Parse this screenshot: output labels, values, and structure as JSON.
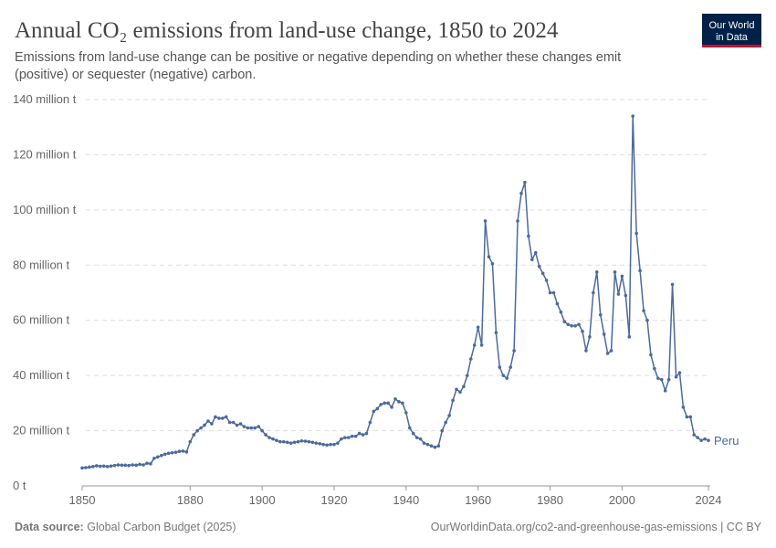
{
  "chart_data": {
    "type": "line",
    "title": "Annual CO₂ emissions from land-use change, 1850 to 2024",
    "subtitle": [
      "Emissions from land-use change can be positive or negative depending on whether these changes emit",
      "(positive) or sequester (negative) carbon."
    ],
    "logo": [
      "Our World",
      "in Data"
    ],
    "source_label": "Data source:",
    "source": "Global Carbon Budget (2025)",
    "footer_right": "OurWorldinData.org/co2-and-greenhouse-gas-emissions | CC BY",
    "x": [
      1850,
      1851,
      1852,
      1853,
      1854,
      1855,
      1856,
      1857,
      1858,
      1859,
      1860,
      1861,
      1862,
      1863,
      1864,
      1865,
      1866,
      1867,
      1868,
      1869,
      1870,
      1871,
      1872,
      1873,
      1874,
      1875,
      1876,
      1877,
      1878,
      1879,
      1880,
      1881,
      1882,
      1883,
      1884,
      1885,
      1886,
      1887,
      1888,
      1889,
      1890,
      1891,
      1892,
      1893,
      1894,
      1895,
      1896,
      1897,
      1898,
      1899,
      1900,
      1901,
      1902,
      1903,
      1904,
      1905,
      1906,
      1907,
      1908,
      1909,
      1910,
      1911,
      1912,
      1913,
      1914,
      1915,
      1916,
      1917,
      1918,
      1919,
      1920,
      1921,
      1922,
      1923,
      1924,
      1925,
      1926,
      1927,
      1928,
      1929,
      1930,
      1931,
      1932,
      1933,
      1934,
      1935,
      1936,
      1937,
      1938,
      1939,
      1940,
      1941,
      1942,
      1943,
      1944,
      1945,
      1946,
      1947,
      1948,
      1949,
      1950,
      1951,
      1952,
      1953,
      1954,
      1955,
      1956,
      1957,
      1958,
      1959,
      1960,
      1961,
      1962,
      1963,
      1964,
      1965,
      1966,
      1967,
      1968,
      1969,
      1970,
      1971,
      1972,
      1973,
      1974,
      1975,
      1976,
      1977,
      1978,
      1979,
      1980,
      1981,
      1982,
      1983,
      1984,
      1985,
      1986,
      1987,
      1988,
      1989,
      1990,
      1991,
      1992,
      1993,
      1994,
      1995,
      1996,
      1997,
      1998,
      1999,
      2000,
      2001,
      2002,
      2003,
      2004,
      2005,
      2006,
      2007,
      2008,
      2009,
      2010,
      2011,
      2012,
      2013,
      2014,
      2015,
      2016,
      2017,
      2018,
      2019,
      2020,
      2021,
      2022,
      2023,
      2024
    ],
    "series": [
      {
        "name": "Peru",
        "color": "#4c6a9c",
        "values": [
          6.5,
          6.6,
          6.8,
          7,
          7.3,
          7.1,
          7.2,
          7,
          7.2,
          7.4,
          7.6,
          7.5,
          7.5,
          7.4,
          7.6,
          7.5,
          7.8,
          7.6,
          8.2,
          8,
          10,
          10.5,
          11,
          11.5,
          11.8,
          12,
          12.2,
          12.5,
          12.6,
          12.3,
          16,
          18.5,
          20,
          21,
          22,
          23.5,
          22.5,
          25,
          24.5,
          24.5,
          25,
          23,
          23,
          22,
          22.5,
          21.5,
          21,
          21,
          21,
          21.5,
          20,
          18.5,
          17.5,
          17,
          16.5,
          16,
          16,
          15.8,
          15.5,
          15.8,
          16,
          16.3,
          16.2,
          16,
          15.8,
          15.5,
          15.3,
          15,
          14.8,
          15,
          15,
          15.5,
          17,
          17.5,
          17.5,
          18,
          18,
          19,
          18.5,
          19,
          23,
          27,
          28,
          29.5,
          30,
          30,
          28.5,
          31.5,
          30.5,
          30,
          26.5,
          21,
          19,
          17.5,
          17,
          15.5,
          15,
          14.5,
          14,
          14.5,
          20,
          23,
          25.5,
          31,
          35,
          34,
          36,
          40,
          46,
          51,
          57.5,
          51,
          96,
          83,
          80.5,
          55.5,
          43,
          40,
          39,
          43,
          49,
          96,
          106,
          110,
          90.5,
          82,
          84.5,
          79.5,
          77,
          74.5,
          70,
          70,
          66,
          63,
          59.5,
          58.5,
          58,
          58,
          58.5,
          56,
          49,
          54,
          70,
          77.5,
          62,
          55,
          48,
          49,
          77.5,
          69.5,
          76,
          69,
          54,
          134,
          91.5,
          78,
          63.5,
          60,
          47.5,
          42.5,
          39,
          38.5,
          34.5,
          38.5,
          73,
          39.5,
          41,
          28.5,
          25,
          25,
          18.5,
          17.5,
          16.5,
          17,
          16.5
        ]
      }
    ],
    "ylim": [
      0,
      140
    ],
    "yticks": [
      {
        "value": 0,
        "label": "0 t"
      },
      {
        "value": 20,
        "label": "20 million t"
      },
      {
        "value": 40,
        "label": "40 million t"
      },
      {
        "value": 60,
        "label": "60 million t"
      },
      {
        "value": 80,
        "label": "80 million t"
      },
      {
        "value": 100,
        "label": "100 million t"
      },
      {
        "value": 120,
        "label": "120 million t"
      },
      {
        "value": 140,
        "label": "140 million t"
      }
    ],
    "xlim": [
      1850,
      2024
    ],
    "xticks": [
      1850,
      1880,
      1900,
      1920,
      1940,
      1960,
      1980,
      2000,
      2024
    ],
    "grid": true
  }
}
